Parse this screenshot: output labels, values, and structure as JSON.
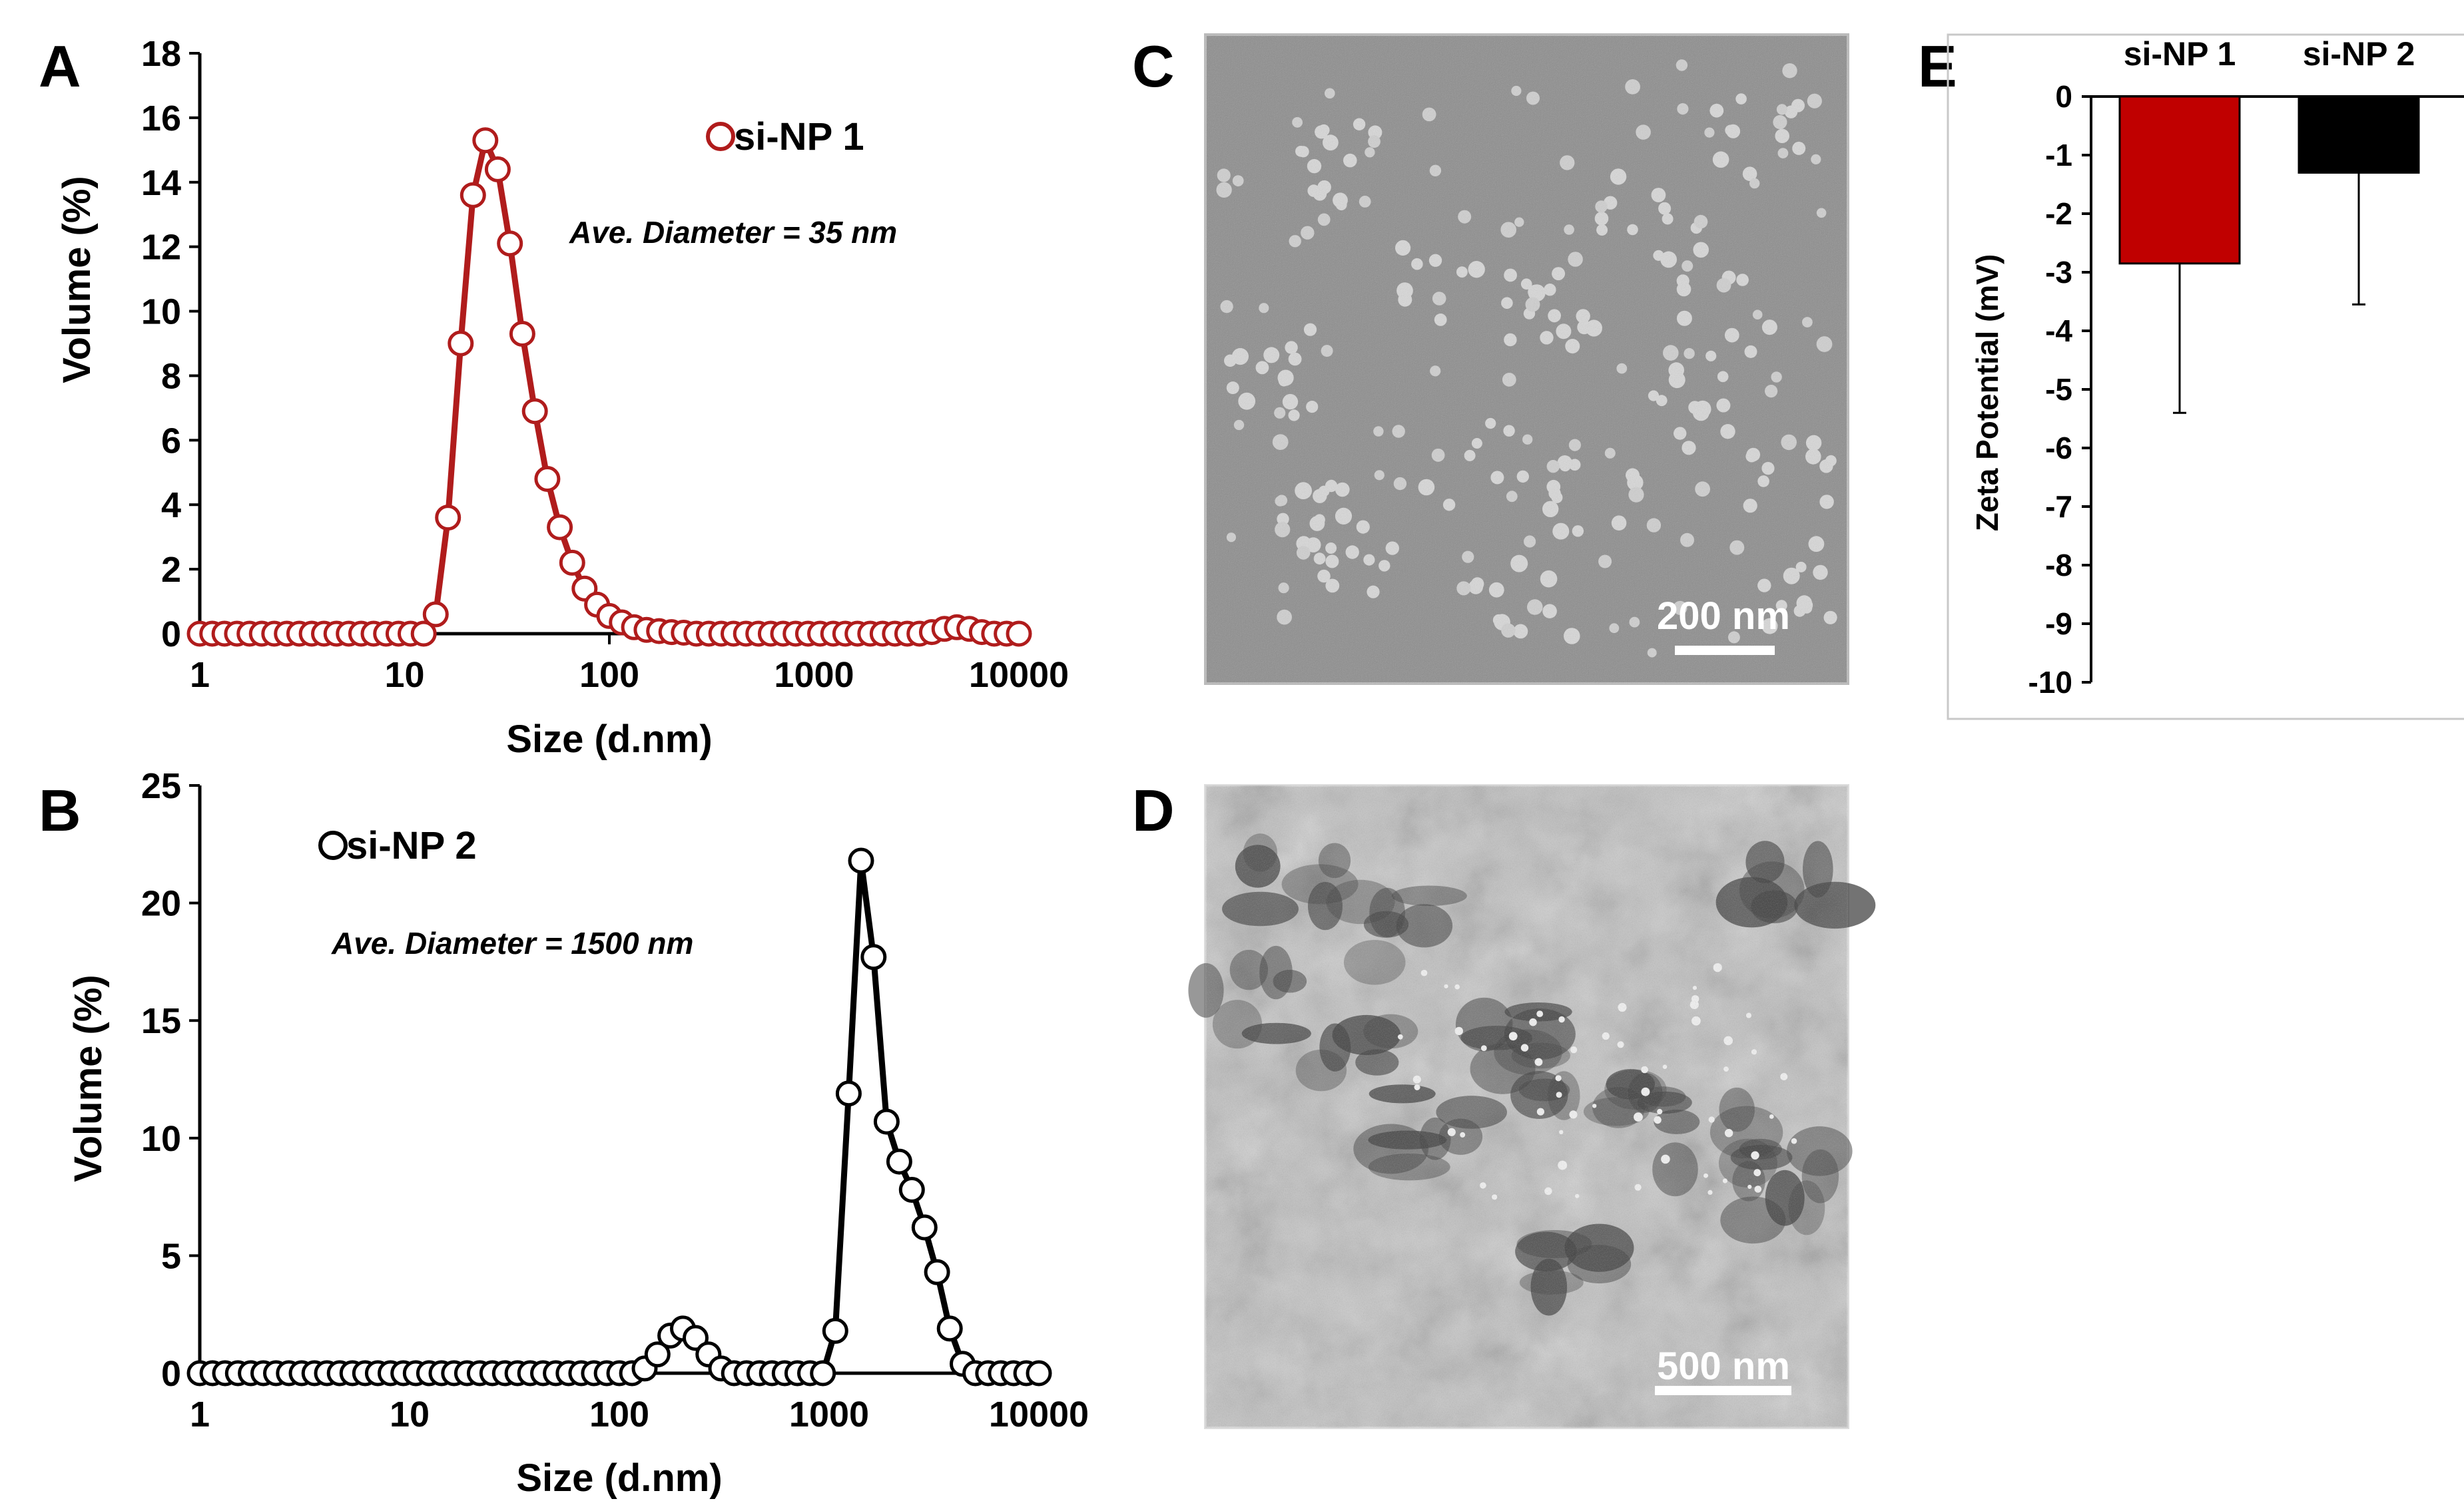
{
  "colors": {
    "nps1": "#b01c1c",
    "nps2": "#000000",
    "bar1": "#c00000",
    "bar2": "#000000",
    "tem_c_bg": "#8c8c8c",
    "tem_d_bg": "#c4c4c4"
  },
  "panels": {
    "A": "A",
    "B": "B",
    "C": "C",
    "D": "D",
    "E": "E"
  },
  "micrographs": {
    "C": {
      "scale_bar": "200 nm"
    },
    "D": {
      "scale_bar": "500 nm"
    }
  },
  "chart_data": [
    {
      "panel": "A",
      "type": "line",
      "xscale": "log",
      "xlim": [
        1,
        10000
      ],
      "ylim": [
        0,
        18
      ],
      "yticks": [
        "0",
        "2",
        "4",
        "6",
        "8",
        "10",
        "12",
        "14",
        "16",
        "18"
      ],
      "xticks": [
        "1",
        "10",
        "100",
        "1000",
        "10000"
      ],
      "xlabel": "Size (d.nm)",
      "ylabel": "Volume (%)",
      "annotation": "Ave. Diameter = 35 nm",
      "series": [
        {
          "name": "si-NP 1",
          "color": "#b01c1c",
          "marker": "open-circle",
          "x": [
            1,
            1.15,
            1.32,
            1.52,
            1.75,
            2.01,
            2.31,
            2.66,
            3.06,
            3.52,
            4.04,
            4.65,
            5.34,
            6.14,
            7.06,
            8.12,
            9.34,
            10.7,
            12.4,
            14.2,
            16.3,
            18.8,
            21.6,
            24.8,
            28.5,
            32.7,
            37.6,
            43.3,
            49.8,
            57.3,
            65.9,
            75.7,
            87.1,
            100,
            115,
            132,
            152,
            175,
            201,
            231,
            266,
            306,
            352,
            404,
            465,
            534,
            614,
            706,
            812,
            934,
            1070,
            1240,
            1420,
            1630,
            1880,
            2160,
            2480,
            2850,
            3270,
            3760,
            4330,
            4980,
            5730,
            6590,
            7570,
            8710,
            10000
          ],
          "y": [
            0,
            0,
            0,
            0,
            0,
            0,
            0,
            0,
            0,
            0,
            0,
            0,
            0,
            0,
            0,
            0,
            0,
            0,
            0,
            0.6,
            3.6,
            9,
            13.6,
            15.3,
            14.4,
            12.1,
            9.3,
            6.9,
            4.8,
            3.3,
            2.2,
            1.4,
            0.9,
            0.55,
            0.35,
            0.2,
            0.12,
            0.08,
            0.05,
            0.03,
            0,
            0,
            0,
            0,
            0,
            0,
            0,
            0,
            0,
            0,
            0,
            0,
            0,
            0,
            0,
            0,
            0,
            0,
            0,
            0.05,
            0.15,
            0.2,
            0.15,
            0.05,
            0,
            0,
            0
          ]
        }
      ]
    },
    {
      "panel": "B",
      "type": "line",
      "xscale": "log",
      "xlim": [
        1,
        10000
      ],
      "ylim": [
        0,
        25
      ],
      "yticks": [
        "0",
        "5",
        "10",
        "15",
        "20",
        "25"
      ],
      "xticks": [
        "1",
        "10",
        "100",
        "1000",
        "10000"
      ],
      "xlabel": "Size (d.nm)",
      "ylabel": "Volume (%)",
      "annotation": "Ave. Diameter = 1500 nm",
      "series": [
        {
          "name": "si-NP 2",
          "color": "#000000",
          "marker": "open-circle",
          "x": [
            1,
            1.15,
            1.32,
            1.52,
            1.75,
            2.01,
            2.31,
            2.66,
            3.06,
            3.52,
            4.04,
            4.65,
            5.34,
            6.14,
            7.06,
            8.12,
            9.34,
            10.7,
            12.4,
            14.2,
            16.3,
            18.8,
            21.6,
            24.8,
            28.5,
            32.7,
            37.6,
            43.3,
            49.8,
            57.3,
            65.9,
            75.7,
            87.1,
            100,
            115,
            132,
            152,
            175,
            201,
            231,
            266,
            306,
            352,
            404,
            465,
            534,
            614,
            706,
            812,
            934,
            1070,
            1240,
            1420,
            1630,
            1880,
            2160,
            2480,
            2850,
            3270,
            3760,
            4330,
            4980,
            5730,
            6590,
            7570,
            8710,
            10000
          ],
          "y": [
            0,
            0,
            0,
            0,
            0,
            0,
            0,
            0,
            0,
            0,
            0,
            0,
            0,
            0,
            0,
            0,
            0,
            0,
            0,
            0,
            0,
            0,
            0,
            0,
            0,
            0,
            0,
            0,
            0,
            0,
            0,
            0,
            0,
            0,
            0,
            0.2,
            0.8,
            1.6,
            1.9,
            1.5,
            0.8,
            0.2,
            0,
            0,
            0,
            0,
            0,
            0,
            0,
            0,
            1.8,
            11.9,
            21.8,
            17.7,
            10.7,
            9,
            7.8,
            6.2,
            4.3,
            1.9,
            0.4,
            0,
            0,
            0,
            0,
            0,
            0
          ]
        }
      ]
    },
    {
      "panel": "E",
      "type": "bar",
      "categories": [
        "si-NP 1",
        "si-NP 2"
      ],
      "values": [
        -2.85,
        -1.3
      ],
      "errors": [
        2.55,
        2.25
      ],
      "colors": [
        "#c00000",
        "#000000"
      ],
      "ylabel": "Zeta Potential (mV)",
      "ylim": [
        -10,
        0
      ],
      "yticks": [
        "0",
        "-1",
        "-2",
        "-3",
        "-4",
        "-5",
        "-6",
        "-7",
        "-8",
        "-9",
        "-10"
      ]
    }
  ]
}
